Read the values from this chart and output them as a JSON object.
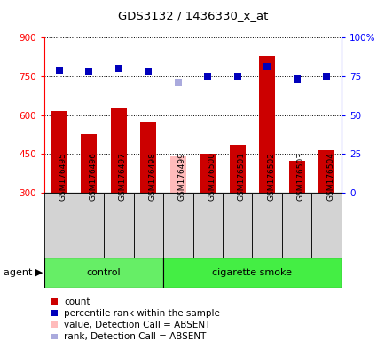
{
  "title": "GDS3132 / 1436330_x_at",
  "samples": [
    "GSM176495",
    "GSM176496",
    "GSM176497",
    "GSM176498",
    "GSM176499",
    "GSM176500",
    "GSM176501",
    "GSM176502",
    "GSM176503",
    "GSM176504"
  ],
  "counts": [
    615,
    527,
    625,
    573,
    440,
    451,
    487,
    830,
    425,
    463
  ],
  "percentile_ranks": [
    79,
    78,
    80,
    78,
    null,
    75,
    75,
    81,
    73,
    75
  ],
  "absent_value": [
    null,
    null,
    null,
    null,
    440,
    null,
    null,
    null,
    null,
    null
  ],
  "absent_rank": [
    null,
    null,
    null,
    null,
    71,
    null,
    null,
    null,
    null,
    null
  ],
  "groups": [
    {
      "label": "control",
      "start": 0,
      "end": 4,
      "color": "#66ee66"
    },
    {
      "label": "cigarette smoke",
      "start": 4,
      "end": 10,
      "color": "#44ee44"
    }
  ],
  "ylim_left": [
    300,
    900
  ],
  "ylim_right": [
    0,
    100
  ],
  "yticks_left": [
    300,
    450,
    600,
    750,
    900
  ],
  "yticks_right": [
    0,
    25,
    50,
    75,
    100
  ],
  "bar_color_present": "#cc0000",
  "bar_color_absent": "#ffbbbb",
  "dot_color_present": "#0000bb",
  "dot_color_absent": "#aaaadd",
  "legend_items": [
    {
      "color": "#cc0000",
      "label": "count"
    },
    {
      "color": "#0000bb",
      "label": "percentile rank within the sample"
    },
    {
      "color": "#ffbbbb",
      "label": "value, Detection Call = ABSENT"
    },
    {
      "color": "#aaaadd",
      "label": "rank, Detection Call = ABSENT"
    }
  ],
  "xtick_bg": "#d3d3d3",
  "grid_color": "black",
  "bar_width": 0.55
}
